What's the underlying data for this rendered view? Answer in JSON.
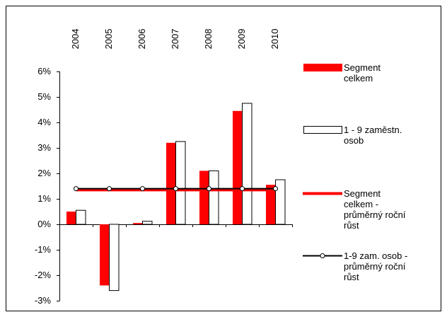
{
  "chart_data": {
    "type": "bar",
    "categories": [
      "2004",
      "2005",
      "2006",
      "2007",
      "2008",
      "2009",
      "2010"
    ],
    "series": [
      {
        "name": "Segment celkem",
        "type": "bar",
        "color": "#ff0000",
        "values": [
          0.5,
          -2.4,
          0.05,
          3.2,
          2.1,
          4.45,
          1.55
        ]
      },
      {
        "name": "1 - 9 zaměstn. osob",
        "type": "bar",
        "color": "#ffffff",
        "values": [
          0.55,
          -2.6,
          0.12,
          3.25,
          2.1,
          4.75,
          1.75
        ]
      },
      {
        "name": "Segment celkem - průměrný roční růst",
        "type": "line",
        "color": "#ff0000",
        "values": [
          1.35,
          1.35,
          1.35,
          1.35,
          1.35,
          1.35,
          1.35
        ]
      },
      {
        "name": "1-9 zam. osob - průměrný roční růst",
        "type": "line",
        "color": "#000000",
        "marker": true,
        "values": [
          1.4,
          1.4,
          1.4,
          1.4,
          1.4,
          1.4,
          1.4
        ]
      }
    ],
    "ylim": [
      -3,
      6
    ],
    "yticks": [
      {
        "value": -3,
        "label": "-3%"
      },
      {
        "value": -2,
        "label": "-2%"
      },
      {
        "value": -1,
        "label": "-1%"
      },
      {
        "value": 0,
        "label": "0%"
      },
      {
        "value": 1,
        "label": "1%"
      },
      {
        "value": 2,
        "label": "2%"
      },
      {
        "value": 3,
        "label": "3%"
      },
      {
        "value": 4,
        "label": "4%"
      },
      {
        "value": 5,
        "label": "5%"
      },
      {
        "value": 6,
        "label": "6%"
      }
    ],
    "grid": false
  }
}
